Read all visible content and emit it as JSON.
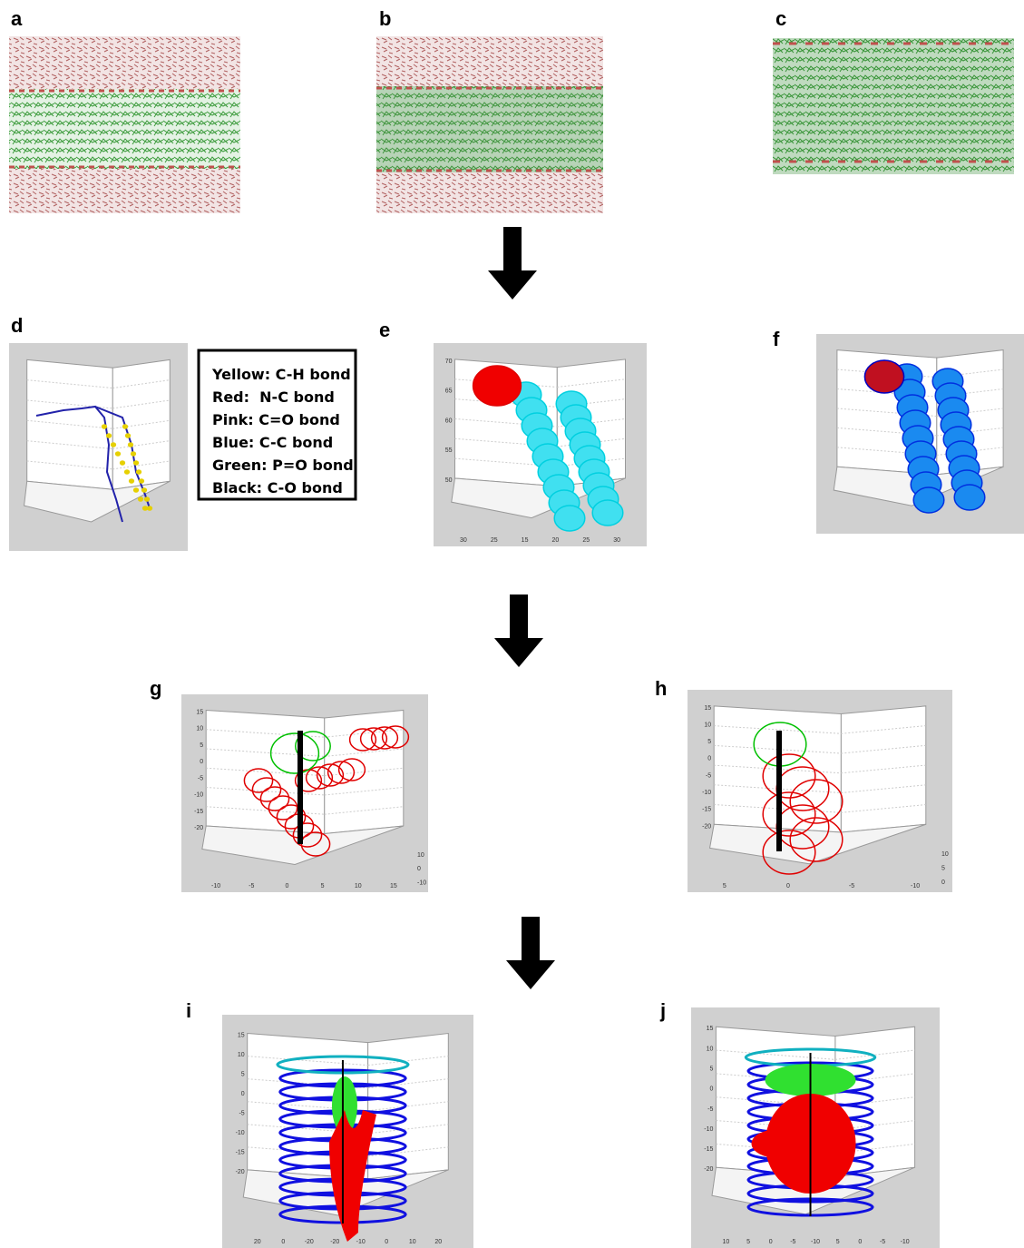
{
  "panel_labels": [
    "a",
    "b",
    "c",
    "d",
    "e",
    "f",
    "g",
    "h",
    "i",
    "j"
  ],
  "legend": {
    "lines": [
      "Yellow: C-H bond",
      "Red:  N-C bond",
      "Pink: C=O bond",
      "Blue: C-C bond",
      "Green: P=O bond",
      "Black: C-O bond"
    ]
  },
  "plots": {
    "e": {
      "z_ticks": [
        70,
        65,
        60,
        55,
        50
      ],
      "base_ticks": [
        30,
        25,
        15,
        20,
        25,
        30
      ]
    },
    "g": {
      "z_ticks": [
        15,
        10,
        5,
        0,
        -5,
        -10,
        -15,
        -20
      ],
      "base_ticks": [
        -10,
        -5,
        0,
        5,
        10,
        15
      ],
      "side_ticks": [
        10,
        0,
        -10
      ]
    },
    "h": {
      "z_ticks": [
        15,
        10,
        5,
        0,
        -5,
        -10,
        -15,
        -20
      ],
      "base_ticks": [
        5,
        0,
        -5,
        -10
      ],
      "side_ticks": [
        10,
        5,
        0
      ]
    },
    "i": {
      "z_ticks": [
        15,
        10,
        5,
        0,
        -5,
        -10,
        -15,
        -20
      ],
      "base_ticks": [
        20,
        0,
        -20,
        -20,
        -10,
        0,
        10,
        20
      ]
    },
    "j": {
      "z_ticks": [
        15,
        10,
        5,
        0,
        -5,
        -10,
        -15,
        -20
      ],
      "base_ticks": [
        10,
        5,
        0,
        -5,
        -10,
        5,
        0,
        -5,
        -10
      ]
    }
  }
}
